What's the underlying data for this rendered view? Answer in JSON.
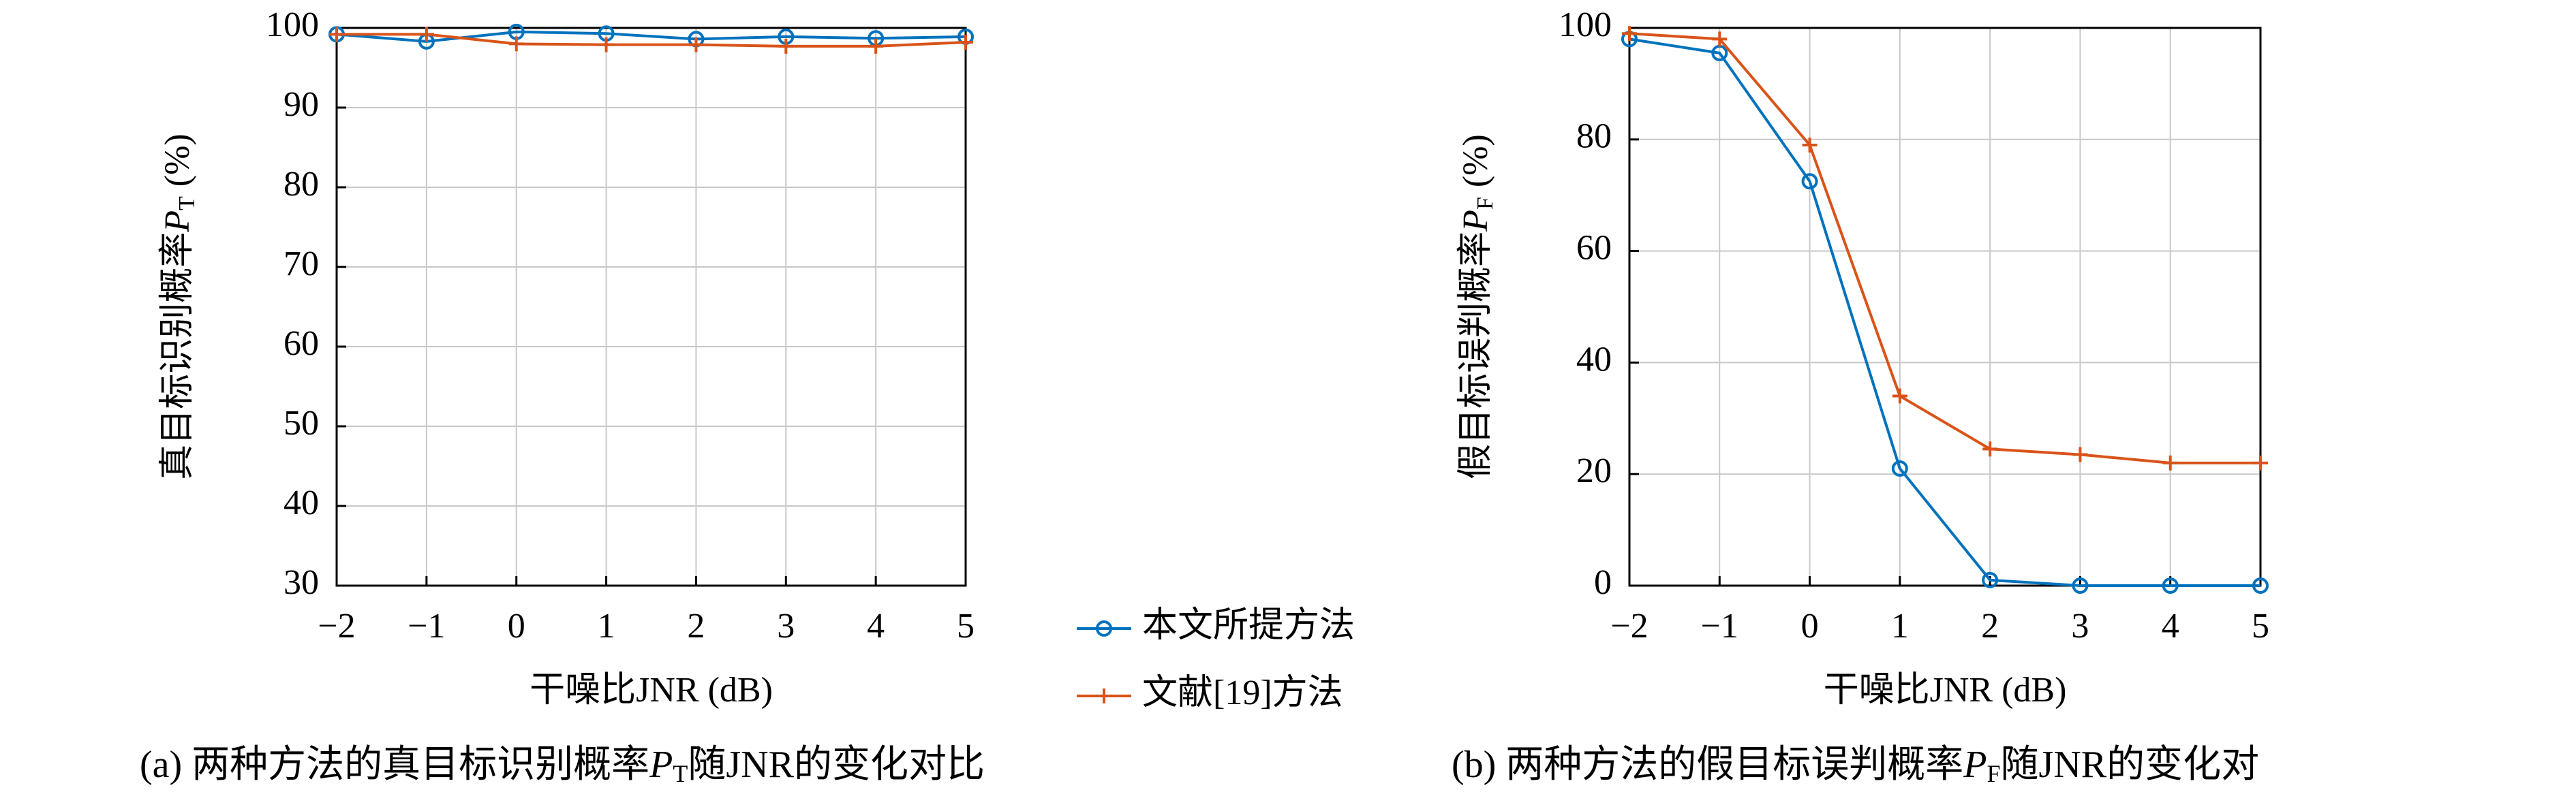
{
  "chart_data": [
    {
      "type": "line",
      "x_label": "干噪比JNR (dB)",
      "y_label": {
        "text": "真目标识别概率",
        "symbol": "P",
        "sub": "T",
        "unit": "(%)"
      },
      "caption": {
        "prefix": "(a) 两种方法的真目标识别概率",
        "symbol": "P",
        "sub": "T",
        "suffix": "随JNR的变化对比"
      },
      "x": [
        -2,
        -1,
        0,
        1,
        2,
        3,
        4,
        5
      ],
      "xlim": [
        -2,
        5
      ],
      "xticks": [
        {
          "value": -2,
          "label": "−2"
        },
        {
          "value": -1,
          "label": "−1"
        },
        0,
        1,
        2,
        3,
        4,
        5
      ],
      "ylim": [
        30,
        100
      ],
      "yticks": [
        30,
        40,
        50,
        60,
        70,
        80,
        90,
        100
      ],
      "grid": true,
      "series": [
        {
          "name": "本文所提方法",
          "color": "#0072bd",
          "marker": "circle",
          "values": [
            99.2,
            98.3,
            99.5,
            99.3,
            98.6,
            98.9,
            98.7,
            98.9
          ]
        },
        {
          "name": "文献[19]方法",
          "color": "#d95319",
          "marker": "plus",
          "values": [
            99.2,
            99.2,
            98.0,
            97.9,
            97.9,
            97.7,
            97.7,
            98.2
          ]
        }
      ]
    },
    {
      "type": "line",
      "x_label": "干噪比JNR (dB)",
      "y_label": {
        "text": "假目标误判概率",
        "symbol": "P",
        "sub": "F",
        "unit": "(%)"
      },
      "caption": {
        "prefix": "(b) 两种方法的假目标误判概率",
        "symbol": "P",
        "sub": "F",
        "suffix": "随JNR的变化对"
      },
      "x": [
        -2,
        -1,
        0,
        1,
        2,
        3,
        4,
        5
      ],
      "xlim": [
        -2,
        5
      ],
      "xticks": [
        {
          "value": -2,
          "label": "−2"
        },
        {
          "value": -1,
          "label": "−1"
        },
        0,
        1,
        2,
        3,
        4,
        5
      ],
      "ylim": [
        0,
        100
      ],
      "yticks": [
        0,
        20,
        40,
        60,
        80,
        100
      ],
      "grid": true,
      "series": [
        {
          "name": "本文所提方法",
          "color": "#0072bd",
          "marker": "circle",
          "values": [
            98,
            95.5,
            72.5,
            21,
            1,
            0,
            0,
            0
          ]
        },
        {
          "name": "文献[19]方法",
          "color": "#d95319",
          "marker": "plus",
          "values": [
            99,
            98,
            79,
            34,
            24.5,
            23.5,
            22,
            22
          ]
        }
      ]
    }
  ]
}
